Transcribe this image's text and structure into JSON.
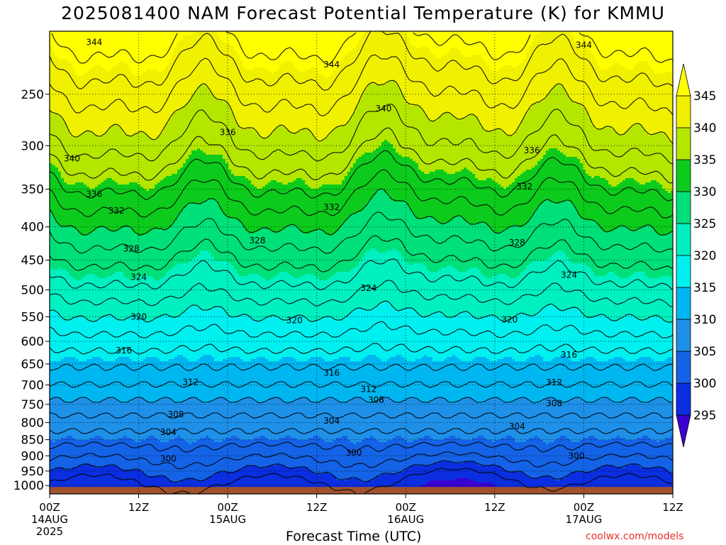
{
  "title": "2025081400 NAM Forecast Potential Temperature (K) for KMMU",
  "xlabel": "Forecast Time (UTC)",
  "credit": "coolwx.com/models",
  "chart_data": {
    "type": "heatmap",
    "title": "2025081400 NAM Forecast Potential Temperature (K) for KMMU",
    "xlabel": "Forecast Time (UTC)",
    "ylabel": "",
    "x_hours_range": [
      0,
      84
    ],
    "y_range_hpa": [
      200,
      1030
    ],
    "y_scale": "log",
    "y_ticks": [
      250,
      300,
      350,
      400,
      450,
      500,
      550,
      600,
      650,
      700,
      750,
      800,
      850,
      900,
      950,
      1000
    ],
    "x_ticks": [
      {
        "h": 0,
        "label": "00Z",
        "sub": "14AUG",
        "sub2": "2025"
      },
      {
        "h": 12,
        "label": "12Z",
        "sub": "",
        "sub2": ""
      },
      {
        "h": 24,
        "label": "00Z",
        "sub": "15AUG",
        "sub2": ""
      },
      {
        "h": 36,
        "label": "12Z",
        "sub": "",
        "sub2": ""
      },
      {
        "h": 48,
        "label": "00Z",
        "sub": "16AUG",
        "sub2": ""
      },
      {
        "h": 60,
        "label": "12Z",
        "sub": "",
        "sub2": ""
      },
      {
        "h": 72,
        "label": "00Z",
        "sub": "17AUG",
        "sub2": ""
      },
      {
        "h": 84,
        "label": "12Z",
        "sub": "",
        "sub2": ""
      }
    ],
    "colorbar": {
      "levels": [
        295,
        300,
        305,
        310,
        315,
        320,
        325,
        330,
        335,
        340,
        345
      ],
      "colors": [
        "#3a00d0",
        "#0a2ee0",
        "#1463e6",
        "#1e90e8",
        "#00b6f0",
        "#00f0f0",
        "#00f0c0",
        "#00e078",
        "#0ccb1c",
        "#b4e600",
        "#f0f000",
        "#ffff00"
      ]
    },
    "surface_color": "#a0522d",
    "surface_pressure_hpa": 1005,
    "contour_interval": 2,
    "contour_labels": [
      {
        "v": 344,
        "h": 6,
        "p": 208
      },
      {
        "v": 344,
        "h": 38,
        "p": 225
      },
      {
        "v": 344,
        "h": 72,
        "p": 210
      },
      {
        "v": 340,
        "h": 3,
        "p": 314
      },
      {
        "v": 340,
        "h": 45,
        "p": 263
      },
      {
        "v": 336,
        "h": 6,
        "p": 356
      },
      {
        "v": 336,
        "h": 24,
        "p": 286
      },
      {
        "v": 336,
        "h": 65,
        "p": 305
      },
      {
        "v": 332,
        "h": 9,
        "p": 378
      },
      {
        "v": 332,
        "h": 38,
        "p": 373
      },
      {
        "v": 332,
        "h": 64,
        "p": 347
      },
      {
        "v": 328,
        "h": 11,
        "p": 432
      },
      {
        "v": 328,
        "h": 28,
        "p": 420
      },
      {
        "v": 328,
        "h": 63,
        "p": 423
      },
      {
        "v": 324,
        "h": 12,
        "p": 478
      },
      {
        "v": 324,
        "h": 43,
        "p": 497
      },
      {
        "v": 324,
        "h": 70,
        "p": 474
      },
      {
        "v": 320,
        "h": 12,
        "p": 550
      },
      {
        "v": 320,
        "h": 33,
        "p": 557
      },
      {
        "v": 320,
        "h": 62,
        "p": 556
      },
      {
        "v": 316,
        "h": 10,
        "p": 620
      },
      {
        "v": 316,
        "h": 38,
        "p": 671
      },
      {
        "v": 316,
        "h": 70,
        "p": 629
      },
      {
        "v": 312,
        "h": 19,
        "p": 693
      },
      {
        "v": 312,
        "h": 43,
        "p": 711
      },
      {
        "v": 312,
        "h": 68,
        "p": 694
      },
      {
        "v": 308,
        "h": 17,
        "p": 777
      },
      {
        "v": 308,
        "h": 44,
        "p": 738
      },
      {
        "v": 308,
        "h": 68,
        "p": 748
      },
      {
        "v": 304,
        "h": 16,
        "p": 828
      },
      {
        "v": 304,
        "h": 38,
        "p": 795
      },
      {
        "v": 304,
        "h": 63,
        "p": 811
      },
      {
        "v": 300,
        "h": 16,
        "p": 910
      },
      {
        "v": 300,
        "h": 41,
        "p": 890
      },
      {
        "v": 300,
        "h": 71,
        "p": 900
      }
    ]
  }
}
